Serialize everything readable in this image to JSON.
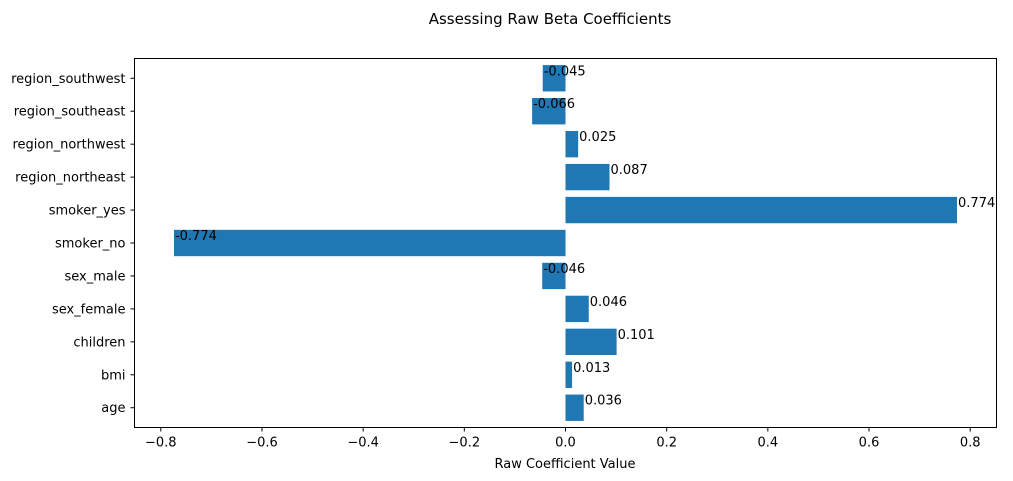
{
  "chart_data": {
    "type": "bar",
    "orientation": "horizontal",
    "title": "Assessing Raw Beta Coefficients",
    "xlabel": "Raw Coefficient Value",
    "ylabel": "",
    "categories": [
      "age",
      "bmi",
      "children",
      "sex_female",
      "sex_male",
      "smoker_no",
      "smoker_yes",
      "region_northeast",
      "region_northwest",
      "region_southeast",
      "region_southwest"
    ],
    "values": [
      0.036,
      0.013,
      0.101,
      0.046,
      -0.046,
      -0.774,
      0.774,
      0.087,
      0.025,
      -0.066,
      -0.045
    ],
    "data_labels": [
      "0.036",
      "0.013",
      "0.101",
      "0.046",
      "-0.046",
      "-0.774",
      "0.774",
      "0.087",
      "0.025",
      "-0.066",
      "-0.045"
    ],
    "xlim": [
      -0.852,
      0.852
    ],
    "xticks": [
      -0.8,
      -0.6,
      -0.4,
      -0.2,
      0.0,
      0.2,
      0.4,
      0.6,
      0.8
    ],
    "xtick_labels": [
      "−0.8",
      "−0.6",
      "−0.4",
      "−0.2",
      "0.0",
      "0.2",
      "0.4",
      "0.6",
      "0.8"
    ],
    "bar_color": "#1f77b4",
    "grid": false,
    "legend": "none"
  }
}
